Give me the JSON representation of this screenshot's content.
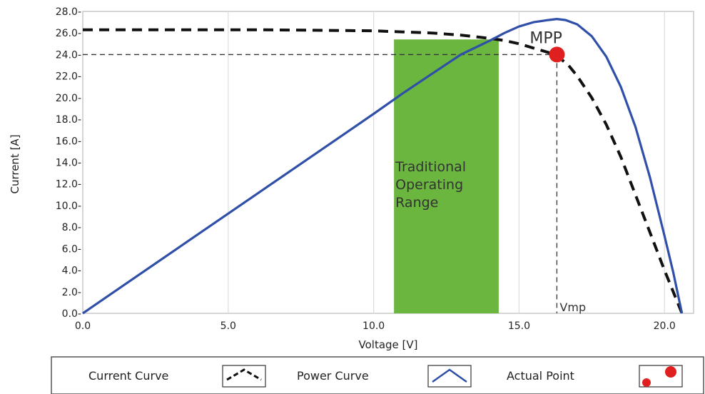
{
  "chart_data": {
    "type": "line",
    "xlabel": "Voltage [V]",
    "ylabel": "Current [A]",
    "xlim": [
      0,
      21
    ],
    "ylim": [
      0,
      28
    ],
    "x_ticks": [
      0.0,
      5.0,
      10.0,
      15.0,
      20.0
    ],
    "x_tick_labels": [
      "0.0",
      "5.0",
      "10.0",
      "15.0",
      "20.0"
    ],
    "y_ticks": [
      0,
      2,
      4,
      6,
      8,
      10,
      12,
      14,
      16,
      18,
      20,
      22,
      24,
      26,
      28
    ],
    "y_tick_labels": [
      "0.0-",
      "2.0-",
      "4.0-",
      "6.0-",
      "8.0-",
      "10.0-",
      "12.0-",
      "14.0-",
      "16.0-",
      "18.0-",
      "20.0-",
      "22.0-",
      "24.0-",
      "26.0-",
      "28.0-"
    ],
    "grid": true,
    "series": [
      {
        "name": "Current Curve",
        "style": "dashed",
        "color": "#111111",
        "x": [
          0,
          2,
          4,
          6,
          8,
          10,
          11,
          12,
          13,
          14,
          14.5,
          15,
          15.5,
          16,
          16.3,
          16.7,
          17,
          17.5,
          18,
          18.5,
          19,
          19.5,
          20,
          20.3,
          20.6
        ],
        "y": [
          26.3,
          26.3,
          26.3,
          26.3,
          26.25,
          26.2,
          26.1,
          26.0,
          25.8,
          25.5,
          25.3,
          25.0,
          24.6,
          24.2,
          23.9,
          23.0,
          22.0,
          20.0,
          17.5,
          14.5,
          11.0,
          7.5,
          4.0,
          2.0,
          0.0
        ]
      },
      {
        "name": "Power Curve",
        "style": "solid",
        "color": "#2f4fa8",
        "x": [
          0,
          2,
          4,
          6,
          8,
          10,
          11,
          12,
          13,
          14,
          14.5,
          15,
          15.5,
          16,
          16.3,
          16.6,
          17,
          17.5,
          18,
          18.5,
          19,
          19.5,
          20,
          20.3,
          20.6
        ],
        "y": [
          0,
          3.7,
          7.4,
          11.1,
          14.8,
          18.5,
          20.4,
          22.2,
          24.0,
          25.3,
          26.0,
          26.6,
          27.0,
          27.2,
          27.3,
          27.2,
          26.8,
          25.7,
          23.8,
          21.0,
          17.3,
          12.6,
          7.2,
          3.8,
          0.0
        ]
      }
    ],
    "actual_point": {
      "name": "Actual Point",
      "x": 16.3,
      "y": 24.0,
      "color": "#e02020"
    },
    "shaded_region": {
      "x_from": 10.7,
      "x_to": 14.3,
      "y_top": 25.4,
      "color": "#6ab63e",
      "label_lines": [
        "Traditional",
        "Operating",
        "Range"
      ]
    },
    "annotations": {
      "mpp": "MPP",
      "vmp": "Vmp",
      "mpp_current": 24.0,
      "vmp_voltage": 16.3
    },
    "legend": {
      "placement": "bottom",
      "entries": [
        {
          "label": "Current Curve",
          "icon": "dashed-chevron-icon"
        },
        {
          "label": "Power Curve",
          "icon": "blue-chevron-icon"
        },
        {
          "label": "Actual Point",
          "icon": "red-dots-icon"
        }
      ]
    }
  }
}
